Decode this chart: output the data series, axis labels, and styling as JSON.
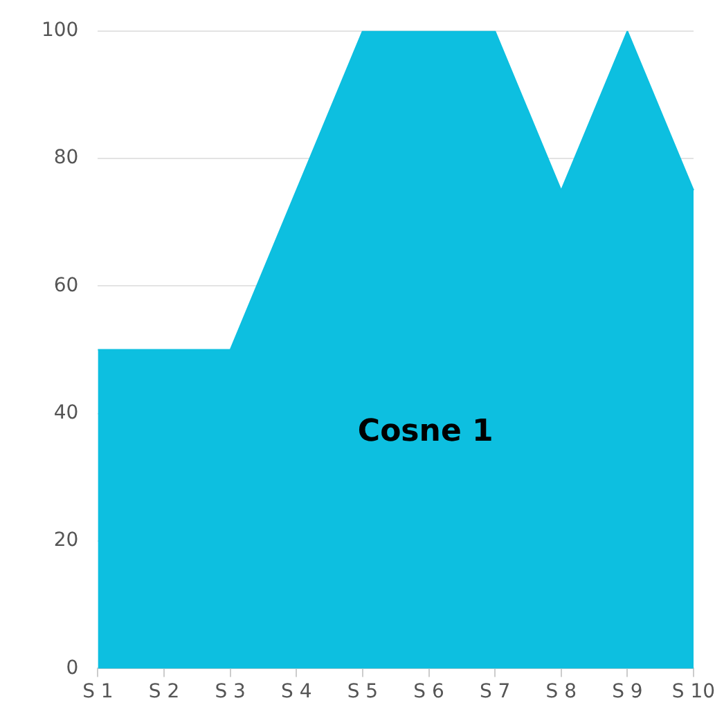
{
  "chart_data": {
    "type": "area",
    "categories": [
      "S 1",
      "S 2",
      "S 3",
      "S 4",
      "S 5",
      "S 6",
      "S 7",
      "S 8",
      "S 9",
      "S 10"
    ],
    "series": [
      {
        "name": "Cosne 1",
        "color": "#0dbfe0",
        "values": [
          50,
          50,
          50,
          75,
          100,
          100,
          100,
          75,
          100,
          75
        ]
      }
    ],
    "ylim": [
      0,
      100
    ],
    "yticks": [
      0,
      20,
      40,
      60,
      80,
      100
    ],
    "grid": "y",
    "legend": false
  }
}
